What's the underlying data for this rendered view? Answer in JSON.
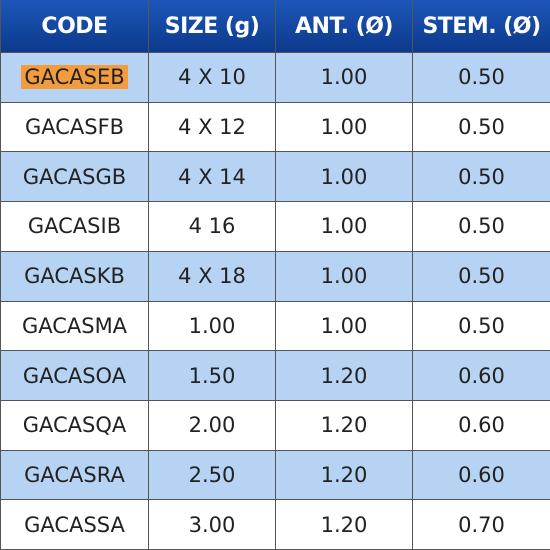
{
  "header": [
    "CODE",
    "SIZE (g)",
    "ANT. (Ø)",
    "STEM. (Ø)"
  ],
  "table": {
    "rows": [
      [
        "GACASEB",
        "4 X 10",
        "1.00",
        "0.50"
      ],
      [
        "GACASFB",
        "4 X 12",
        "1.00",
        "0.50"
      ],
      [
        "GACASGB",
        "4 X 14",
        "1.00",
        "0.50"
      ],
      [
        "GACASIB",
        "4 16",
        "1.00",
        "0.50"
      ],
      [
        "GACASKB",
        "4 X 18",
        "1.00",
        "0.50"
      ],
      [
        "GACASMA",
        "1.00",
        "1.00",
        "0.50"
      ],
      [
        "GACASOA",
        "1.50",
        "1.20",
        "0.60"
      ],
      [
        "GACASQA",
        "2.00",
        "1.20",
        "0.60"
      ],
      [
        "GACASRA",
        "2.50",
        "1.20",
        "0.60"
      ],
      [
        "GACASSA",
        "3.00",
        "1.20",
        "0.70"
      ]
    ]
  }
}
